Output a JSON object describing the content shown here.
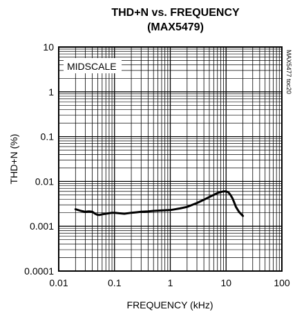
{
  "chart_data": {
    "type": "line",
    "title": "THD+N vs. FREQUENCY",
    "subtitle": "(MAX5479)",
    "xlabel": "FREQUENCY (kHz)",
    "ylabel": "THD+N (%)",
    "xscale": "log",
    "yscale": "log",
    "xlim": [
      0.01,
      100
    ],
    "ylim": [
      0.0001,
      10
    ],
    "grid": true,
    "x_tick_labels": [
      "0.01",
      "0.1",
      "1",
      "10",
      "100"
    ],
    "y_tick_labels": [
      "0.0001",
      "0.001",
      "0.01",
      "0.1",
      "1",
      "10"
    ],
    "annotation": "MIDSCALE",
    "figure_code": "MAX5477 toc20",
    "series": [
      {
        "x": [
          0.02,
          0.025,
          0.03,
          0.035,
          0.04,
          0.045,
          0.05,
          0.055,
          0.06,
          0.07,
          0.08,
          0.09,
          0.1,
          0.12,
          0.15,
          0.2,
          0.25,
          0.3,
          0.4,
          0.5,
          0.7,
          1,
          1.5,
          2,
          3,
          4,
          5,
          6,
          7,
          8,
          9,
          10,
          11,
          12,
          13,
          14,
          15,
          17,
          20
        ],
        "y": [
          0.0024,
          0.0022,
          0.0021,
          0.00215,
          0.0021,
          0.0019,
          0.0018,
          0.0018,
          0.00185,
          0.0019,
          0.00195,
          0.002,
          0.002,
          0.00195,
          0.0019,
          0.002,
          0.00205,
          0.0021,
          0.00215,
          0.0022,
          0.00225,
          0.0023,
          0.0025,
          0.0027,
          0.0033,
          0.0039,
          0.0045,
          0.005,
          0.0055,
          0.0058,
          0.006,
          0.006,
          0.0057,
          0.005,
          0.0042,
          0.0034,
          0.0027,
          0.0021,
          0.0017
        ]
      }
    ]
  }
}
